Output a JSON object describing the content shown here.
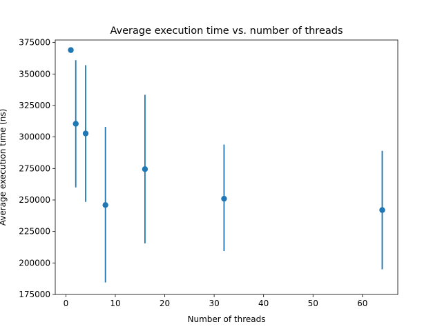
{
  "chart_data": {
    "type": "scatter",
    "title": "Average execution time vs. number of threads",
    "xlabel": "Number of threads",
    "ylabel": "Average execution time (ns)",
    "xlim": [
      -2.15,
      67.15
    ],
    "ylim": [
      175000,
      377000
    ],
    "xticks": [
      0,
      10,
      20,
      30,
      40,
      50,
      60
    ],
    "yticks": [
      175000,
      200000,
      225000,
      250000,
      275000,
      300000,
      325000,
      350000,
      375000
    ],
    "grid": false,
    "color": "#1f77b4",
    "points": [
      {
        "x": 1,
        "y": 369000,
        "err_low": 369000,
        "err_high": 369000
      },
      {
        "x": 2,
        "y": 310500,
        "err_low": 260000,
        "err_high": 361000
      },
      {
        "x": 4,
        "y": 302800,
        "err_low": 248500,
        "err_high": 357000
      },
      {
        "x": 8,
        "y": 246000,
        "err_low": 184500,
        "err_high": 308000
      },
      {
        "x": 16,
        "y": 274500,
        "err_low": 215500,
        "err_high": 333500
      },
      {
        "x": 32,
        "y": 251000,
        "err_low": 209500,
        "err_high": 294000
      },
      {
        "x": 64,
        "y": 242000,
        "err_low": 195000,
        "err_high": 289000
      }
    ]
  }
}
